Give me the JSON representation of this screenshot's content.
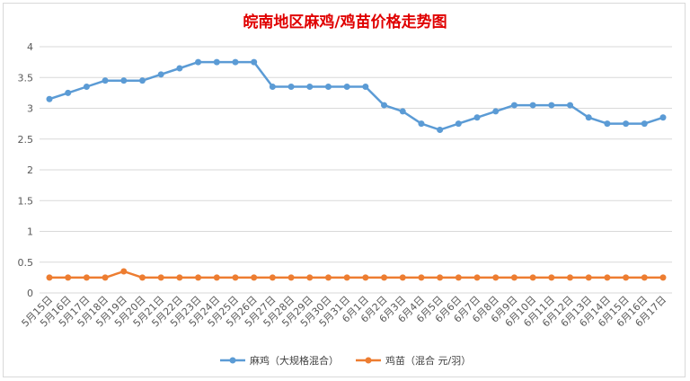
{
  "chart_data": {
    "type": "line",
    "title": "皖南地区麻鸡/鸡苗价格走势图",
    "title_color": "#e00000",
    "categories": [
      "5月15日",
      "5月16日",
      "5月17日",
      "5月18日",
      "5月19日",
      "5月20日",
      "5月21日",
      "5月22日",
      "5月23日",
      "5月24日",
      "5月25日",
      "5月26日",
      "5月27日",
      "5月28日",
      "5月29日",
      "5月30日",
      "5月31日",
      "6月1日",
      "6月2日",
      "6月3日",
      "6月4日",
      "6月5日",
      "6月6日",
      "6月7日",
      "6月8日",
      "6月9日",
      "6月10日",
      "6月11日",
      "6月12日",
      "6月13日",
      "6月14日",
      "6月15日",
      "6月16日",
      "6月17日"
    ],
    "series": [
      {
        "name": "麻鸡（大规格混合）",
        "color": "#5b9bd5",
        "values": [
          3.15,
          3.25,
          3.35,
          3.45,
          3.45,
          3.45,
          3.55,
          3.65,
          3.75,
          3.75,
          3.75,
          3.75,
          3.35,
          3.35,
          3.35,
          3.35,
          3.35,
          3.35,
          3.05,
          2.95,
          2.75,
          2.65,
          2.75,
          2.85,
          2.95,
          3.05,
          3.05,
          3.05,
          3.05,
          2.85,
          2.75,
          2.75,
          2.75,
          2.85
        ]
      },
      {
        "name": "鸡苗（混合 元/羽）",
        "color": "#ed7d31",
        "values": [
          0.25,
          0.25,
          0.25,
          0.25,
          0.35,
          0.25,
          0.25,
          0.25,
          0.25,
          0.25,
          0.25,
          0.25,
          0.25,
          0.25,
          0.25,
          0.25,
          0.25,
          0.25,
          0.25,
          0.25,
          0.25,
          0.25,
          0.25,
          0.25,
          0.25,
          0.25,
          0.25,
          0.25,
          0.25,
          0.25,
          0.25,
          0.25,
          0.25,
          0.25
        ]
      }
    ],
    "y_ticks": [
      "0",
      "0.5",
      "1",
      "1.5",
      "2",
      "2.5",
      "3",
      "3.5",
      "4"
    ],
    "ylim": [
      0,
      4
    ],
    "grid": true,
    "legend_position": "bottom"
  }
}
